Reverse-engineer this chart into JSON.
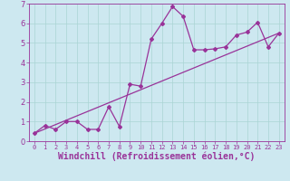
{
  "title": "",
  "xlabel": "Windchill (Refroidissement éolien,°C)",
  "background_color": "#cde8f0",
  "line_color": "#993399",
  "xlim": [
    -0.5,
    23.5
  ],
  "ylim": [
    0,
    7
  ],
  "xticks": [
    0,
    1,
    2,
    3,
    4,
    5,
    6,
    7,
    8,
    9,
    10,
    11,
    12,
    13,
    14,
    15,
    16,
    17,
    18,
    19,
    20,
    21,
    22,
    23
  ],
  "yticks": [
    0,
    1,
    2,
    3,
    4,
    5,
    6,
    7
  ],
  "scatter_x": [
    0,
    1,
    2,
    3,
    4,
    5,
    6,
    7,
    8,
    9,
    10,
    11,
    12,
    13,
    14,
    15,
    16,
    17,
    18,
    19,
    20,
    21,
    22,
    23
  ],
  "scatter_y": [
    0.4,
    0.8,
    0.6,
    1.0,
    1.0,
    0.6,
    0.6,
    1.75,
    0.75,
    2.9,
    2.8,
    5.2,
    6.0,
    6.85,
    6.35,
    4.65,
    4.65,
    4.7,
    4.8,
    5.4,
    5.55,
    6.05,
    4.8,
    5.5
  ],
  "line_x": [
    0,
    23
  ],
  "line_y": [
    0.4,
    5.5
  ],
  "xlabel_fontsize": 7,
  "tick_fontsize": 6,
  "grid_color": "#aad4d4"
}
